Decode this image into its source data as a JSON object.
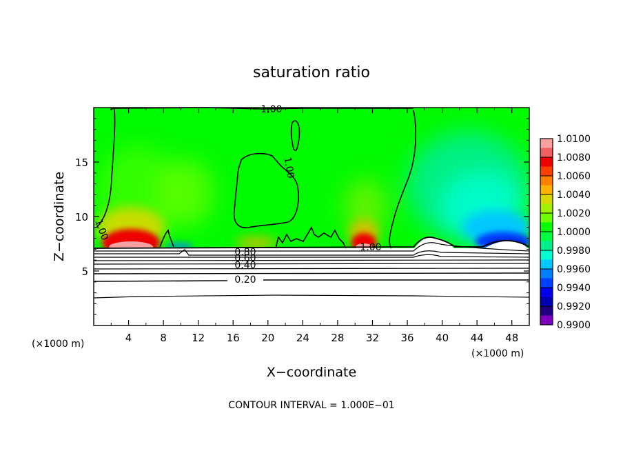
{
  "chart_data": {
    "type": "heatmap",
    "title": "saturation ratio",
    "xlabel": "X−coordinate",
    "ylabel": "Z−coordinate",
    "x_unit": "(×1000 m)",
    "z_unit": "(×1000 m)",
    "xlim": [
      0,
      50
    ],
    "ylim": [
      0,
      20
    ],
    "x_ticks": [
      4,
      8,
      12,
      16,
      20,
      24,
      28,
      32,
      36,
      40,
      44,
      48
    ],
    "x_tick_labels": [
      "4",
      "8",
      "12",
      "16",
      "20",
      "24",
      "28",
      "32",
      "36",
      "40",
      "44",
      "48"
    ],
    "y_ticks": [
      5,
      10,
      15
    ],
    "y_tick_labels": [
      "5",
      "10",
      "15"
    ],
    "footer": "CONTOUR INTERVAL = 1.000E−01",
    "contour_interval": 0.1,
    "colorbar": {
      "min": 0.99,
      "max": 1.01,
      "tick_labels": [
        "1.0100",
        "1.0080",
        "1.0060",
        "1.0040",
        "1.0020",
        "1.0000",
        "0.9980",
        "0.9960",
        "0.9940",
        "0.9920",
        "0.9900"
      ],
      "colors": [
        "#f9a0a0",
        "#f06060",
        "#ee0000",
        "#ff4000",
        "#ff8000",
        "#ffb000",
        "#d8d800",
        "#a0f000",
        "#70ff00",
        "#00ff00",
        "#00ff40",
        "#00f090",
        "#00ffd0",
        "#00c8ff",
        "#0080ff",
        "#0040ff",
        "#0000ee",
        "#0000b0",
        "#200080",
        "#8000c0"
      ]
    },
    "contour_labels": [
      {
        "text": "1.00",
        "x": 40,
        "y": 19.8
      },
      {
        "text": "1.00",
        "x": 42,
        "y": 17.5
      },
      {
        "text": "1.00",
        "x": 2,
        "y": 9.8
      },
      {
        "text": "1.00",
        "x": 63,
        "y": 7.2
      },
      {
        "text": "0.80",
        "x": 17,
        "y": 6.8
      },
      {
        "text": "0.60",
        "x": 17,
        "y": 6.4
      },
      {
        "text": "0.40",
        "x": 17,
        "y": 5.6
      },
      {
        "text": "0.20",
        "x": 17,
        "y": 4.2
      }
    ]
  }
}
